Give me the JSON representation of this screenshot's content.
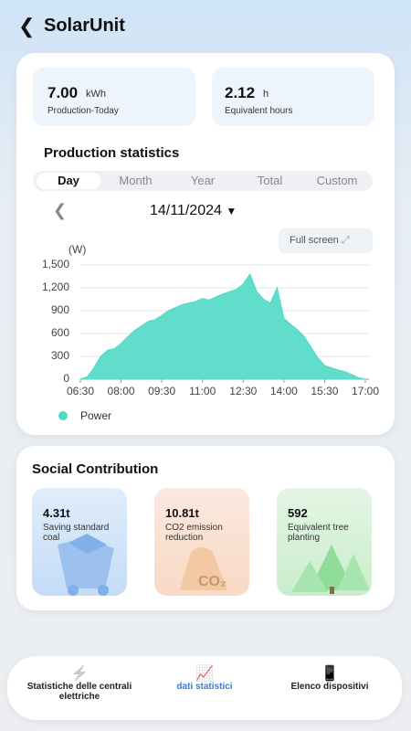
{
  "header": {
    "title": "SolarUnit"
  },
  "summary": [
    {
      "value": "7.00",
      "unit": "kWh",
      "label": "Production-Today"
    },
    {
      "value": "2.12",
      "unit": "h",
      "label": "Equivalent hours"
    }
  ],
  "production": {
    "title": "Production statistics",
    "tabs": [
      "Day",
      "Month",
      "Year",
      "Total",
      "Custom"
    ],
    "active_tab": 0,
    "date": "14/11/2024",
    "full_screen": "Full screen",
    "chart": {
      "type": "area",
      "y_label": "(W)",
      "x": [
        "06:30",
        "06:45",
        "07:00",
        "07:15",
        "07:30",
        "07:45",
        "08:00",
        "08:15",
        "08:30",
        "08:45",
        "09:00",
        "09:15",
        "09:30",
        "09:45",
        "10:00",
        "10:15",
        "10:30",
        "10:45",
        "11:00",
        "11:15",
        "11:30",
        "11:45",
        "12:00",
        "12:15",
        "12:30",
        "12:45",
        "13:00",
        "13:15",
        "13:30",
        "13:45",
        "14:00",
        "14:15",
        "14:30",
        "14:45",
        "15:00",
        "15:15",
        "15:30",
        "15:45",
        "16:00",
        "16:15",
        "16:30",
        "16:45",
        "17:00"
      ],
      "series": [
        {
          "name": "Power",
          "color": "#4fd9c5",
          "values": [
            0,
            30,
            150,
            300,
            380,
            400,
            470,
            560,
            640,
            700,
            760,
            780,
            840,
            900,
            940,
            980,
            1000,
            1020,
            1060,
            1040,
            1080,
            1120,
            1150,
            1180,
            1250,
            1380,
            1150,
            1050,
            1000,
            1200,
            800,
            720,
            650,
            560,
            420,
            280,
            180,
            150,
            120,
            100,
            60,
            20,
            0
          ]
        }
      ],
      "ylim": [
        0,
        1500
      ],
      "yticks": [
        0,
        300,
        600,
        900,
        {
          "value": 1200,
          "label": "1,200"
        },
        {
          "value": 1500,
          "label": "1,500"
        }
      ],
      "xticks": [
        "06:30",
        "08:00",
        "09:30",
        "11:00",
        "12:30",
        "14:00",
        "15:30",
        "17:00"
      ],
      "grid": true
    }
  },
  "social": {
    "title": "Social Contribution",
    "cards": [
      {
        "value": "4.31t",
        "label": "Saving standard coal"
      },
      {
        "value": "10.81t",
        "label": "CO2 emission reduction",
        "icon_text": "CO₂"
      },
      {
        "value": "592",
        "label": "Equivalent tree planting"
      }
    ]
  },
  "nav": {
    "items": [
      "Statistiche delle centrali elettriche",
      "dati statistici",
      "Elenco dispositivi"
    ],
    "active": 1
  }
}
